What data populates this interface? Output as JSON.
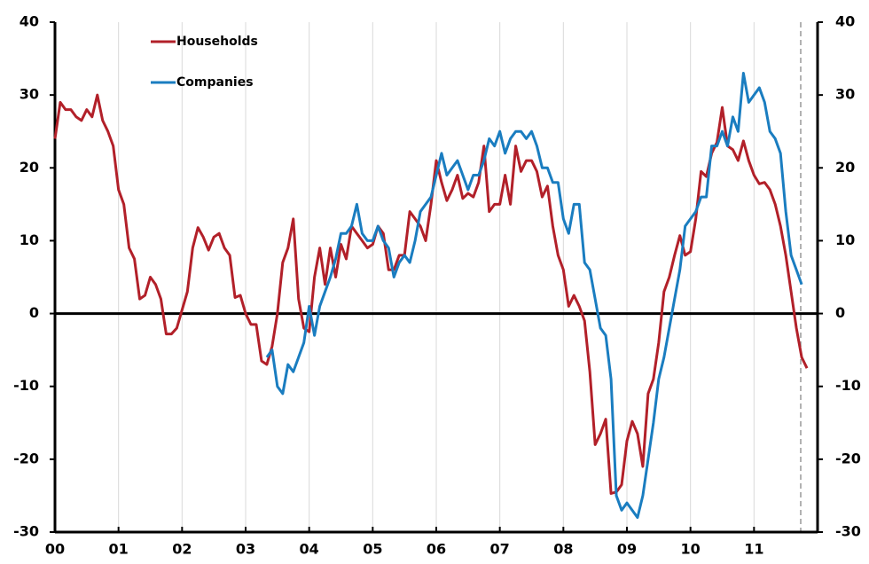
{
  "chart_data": {
    "type": "line",
    "categories": [
      "00",
      null,
      null,
      null,
      null,
      null,
      null,
      null,
      null,
      null,
      null,
      null,
      "01",
      null,
      null,
      null,
      null,
      null,
      null,
      null,
      null,
      null,
      null,
      null,
      "02",
      null,
      null,
      null,
      null,
      null,
      null,
      null,
      null,
      null,
      null,
      null,
      "03",
      null,
      null,
      null,
      null,
      null,
      null,
      null,
      null,
      null,
      null,
      null,
      "04",
      null,
      null,
      null,
      null,
      null,
      null,
      null,
      null,
      null,
      null,
      null,
      "05",
      null,
      null,
      null,
      null,
      null,
      null,
      null,
      null,
      null,
      null,
      null,
      "06",
      null,
      null,
      null,
      null,
      null,
      null,
      null,
      null,
      null,
      null,
      null,
      "07",
      null,
      null,
      null,
      null,
      null,
      null,
      null,
      null,
      null,
      null,
      null,
      "08",
      null,
      null,
      null,
      null,
      null,
      null,
      null,
      null,
      null,
      null,
      null,
      "09",
      null,
      null,
      null,
      null,
      null,
      null,
      null,
      null,
      null,
      null,
      null,
      "10",
      null,
      null,
      null,
      null,
      null,
      null,
      null,
      null,
      null,
      null,
      null,
      "11",
      null,
      null,
      null,
      null,
      null,
      null,
      null,
      null,
      null,
      null
    ],
    "series": [
      {
        "name": "Households",
        "color": "#b22029",
        "values": [
          24,
          29,
          28,
          28,
          27,
          26.5,
          28,
          27,
          30,
          26.5,
          25,
          23,
          17,
          15,
          9,
          7.5,
          2,
          2.5,
          5,
          4,
          2,
          -2.8,
          -2.8,
          -2,
          0.5,
          3,
          9,
          11.8,
          10.5,
          8.7,
          10.5,
          11,
          9,
          8,
          2.2,
          2.5,
          0,
          -1.5,
          -1.5,
          -6.5,
          -7,
          -4.5,
          0,
          7,
          9,
          13,
          2,
          -2,
          -2.5,
          5,
          9,
          4,
          9,
          5,
          9.5,
          7.5,
          12,
          11,
          10,
          9,
          9.5,
          12,
          11,
          6,
          6,
          8,
          8,
          14,
          13,
          12,
          10,
          15,
          21,
          18,
          15.5,
          17,
          19,
          15.8,
          16.5,
          16,
          18,
          23,
          14,
          15,
          15,
          19,
          15,
          23,
          19.5,
          21,
          21,
          19.5,
          16,
          17.5,
          12,
          8,
          6,
          1,
          2.5,
          1,
          -1,
          -8,
          -18,
          -16.5,
          -14.5,
          -24.7,
          -24.5,
          -23.5,
          -17.5,
          -14.8,
          -16.5,
          -21,
          -11,
          -9,
          -4,
          3,
          5,
          8,
          10.7,
          8,
          8.5,
          13,
          19.5,
          18.8,
          22,
          23.5,
          28.3,
          23,
          22.5,
          21,
          23.7,
          21,
          19,
          17.8,
          18,
          17,
          15,
          12,
          8,
          3,
          -2,
          -6,
          -7.5
        ]
      },
      {
        "name": "Companies",
        "color": "#1a7dc0",
        "values": [
          null,
          null,
          null,
          null,
          null,
          null,
          null,
          null,
          null,
          null,
          null,
          null,
          null,
          null,
          null,
          null,
          null,
          null,
          null,
          null,
          null,
          null,
          null,
          null,
          null,
          null,
          null,
          null,
          null,
          null,
          null,
          null,
          null,
          null,
          null,
          null,
          null,
          null,
          null,
          null,
          -6,
          -5,
          -10,
          -11,
          -7,
          -8,
          -6,
          -4,
          1,
          -3,
          1,
          3,
          5,
          7.5,
          11,
          11,
          12,
          15,
          11,
          10,
          10,
          12,
          10,
          9,
          5,
          7,
          8,
          7,
          10,
          14,
          15,
          16,
          19,
          22,
          19,
          20,
          21,
          19,
          17,
          19,
          19,
          21,
          24,
          23,
          25,
          22,
          24,
          25,
          25,
          24,
          25,
          23,
          20,
          20,
          18,
          18,
          13,
          11,
          15,
          15,
          7,
          6,
          2,
          -2,
          -3,
          -9,
          -25,
          -27,
          -26,
          -27,
          -28,
          -25,
          -20,
          -15,
          -9,
          -6,
          -2,
          2,
          6,
          12,
          13,
          14,
          16,
          16,
          23,
          23,
          25,
          23,
          27,
          25,
          33,
          29,
          30,
          31,
          29,
          25,
          24,
          22,
          14,
          8,
          6,
          4,
          null
        ]
      }
    ],
    "ylim": [
      -30,
      40
    ],
    "yticks": [
      -30,
      -20,
      -10,
      0,
      10,
      20,
      30,
      40
    ],
    "grid": true
  }
}
